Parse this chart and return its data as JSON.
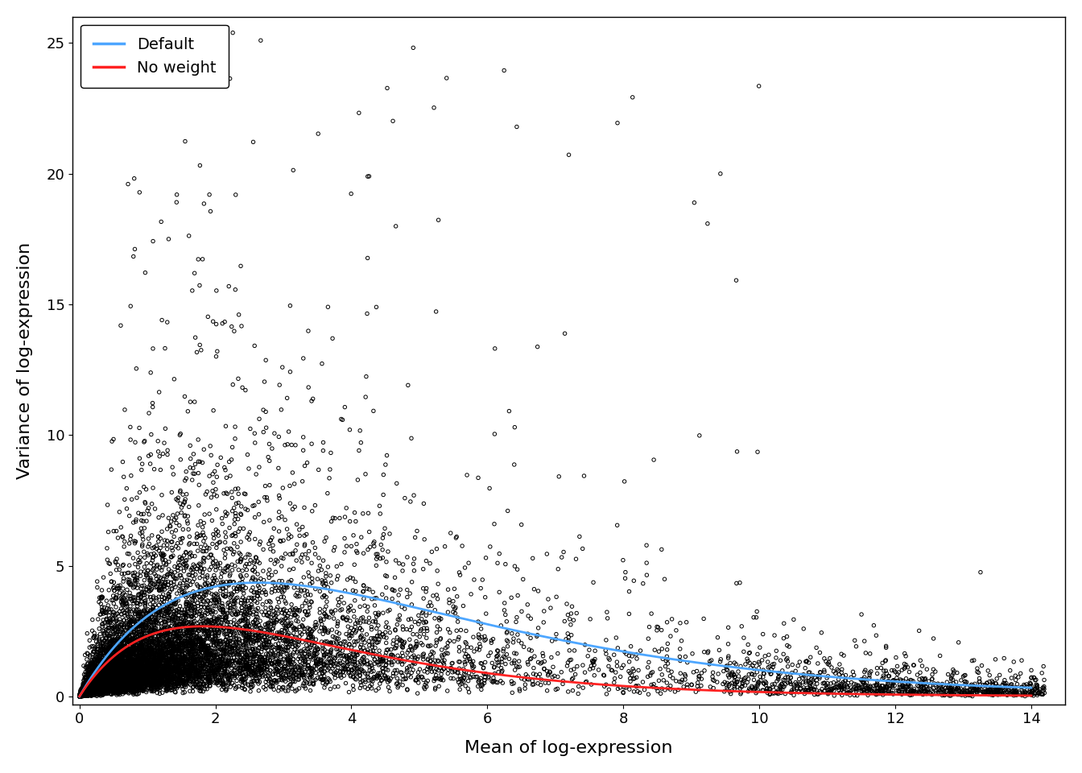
{
  "title": "",
  "xlabel": "Mean of log-expression",
  "ylabel": "Variance of log-expression",
  "xlim": [
    -0.1,
    14.5
  ],
  "ylim": [
    -0.3,
    26
  ],
  "xticks": [
    0,
    2,
    4,
    6,
    8,
    10,
    12,
    14
  ],
  "yticks": [
    0,
    5,
    10,
    15,
    20,
    25
  ],
  "scatter_color": "black",
  "scatter_marker": "o",
  "scatter_facecolor": "none",
  "scatter_edgecolor": "black",
  "scatter_size": 10,
  "scatter_linewidth": 0.7,
  "blue_line_color": "#4da6ff",
  "red_line_color": "#ff2222",
  "line_width": 2.0,
  "legend_labels": [
    "Default",
    "No weight"
  ],
  "legend_colors": [
    "#4da6ff",
    "#ff2222"
  ],
  "background_color": "white",
  "fig_width": 13.44,
  "fig_height": 9.6,
  "seed": 42
}
